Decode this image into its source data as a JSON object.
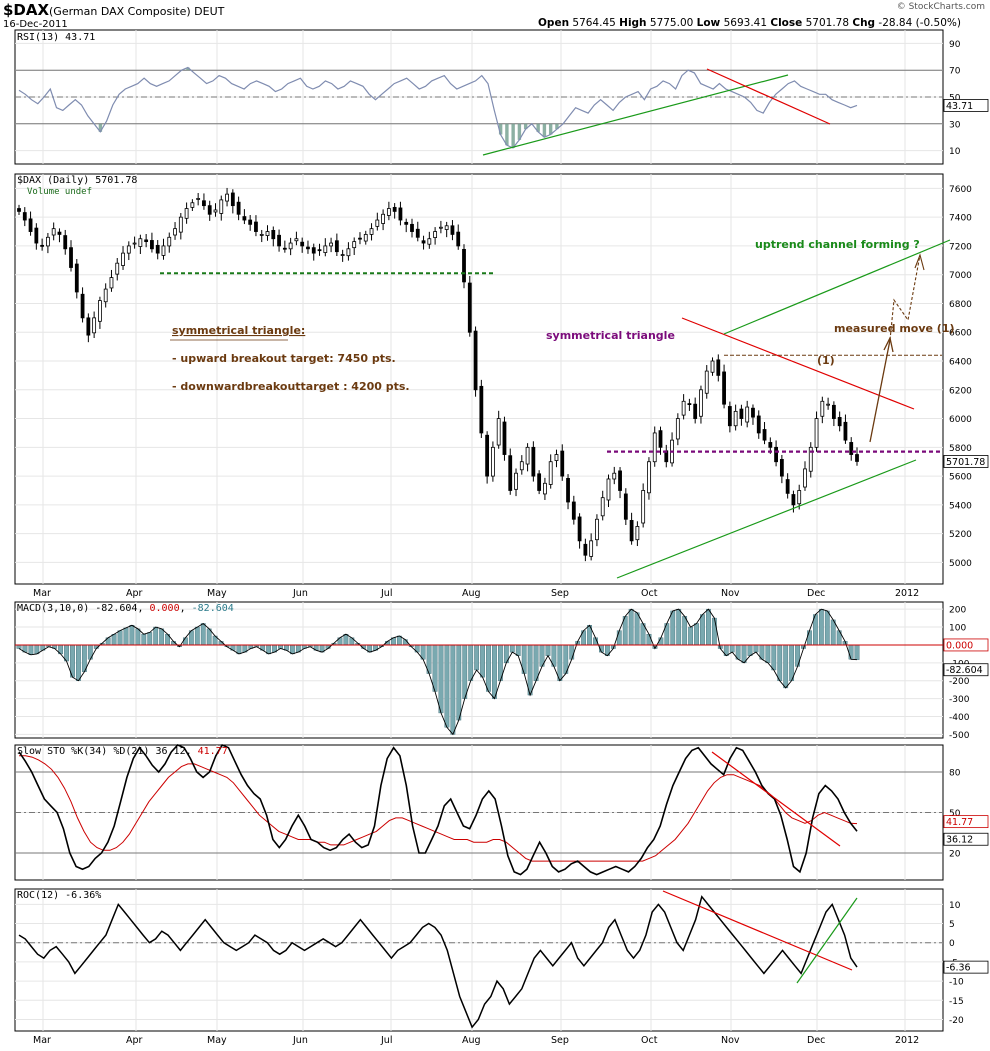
{
  "header": {
    "symbol": "$DAX",
    "name": "(German DAX Composite) DEUT",
    "date": "16-Dec-2011",
    "open_label": "Open",
    "open": "5764.45",
    "high_label": "High",
    "high": "5775.00",
    "low_label": "Low",
    "low": "5693.41",
    "close_label": "Close",
    "close": "5701.78",
    "chg_label": "Chg",
    "chg": "-28.84 (-0.50%)",
    "copyright": "© StockCharts.com"
  },
  "colors": {
    "price_border": "#000000",
    "rsi_line": "#7f8cb0",
    "rsi_fill": "#6f9c8c",
    "macd_hist": "#7aa9b0",
    "signal": "#cc0000",
    "trend_green": "#1a9a1a",
    "trend_red": "#e00000",
    "annotation_brown": "#6b3a10",
    "annotation_purple": "#7a0a7a",
    "dashed_green": "#1a7a1a"
  },
  "chart_data": [
    {
      "panel": "rsi",
      "type": "line",
      "label": "RSI(13) 43.71",
      "last_value": "43.71",
      "ylim": [
        0,
        100
      ],
      "y_ticks": [
        "90",
        "70",
        "50",
        "30",
        "10"
      ],
      "reference_lines": [
        70,
        50,
        30
      ],
      "values": [
        55,
        52,
        48,
        45,
        50,
        56,
        42,
        40,
        44,
        48,
        44,
        36,
        30,
        24,
        32,
        44,
        52,
        56,
        58,
        60,
        64,
        60,
        58,
        60,
        62,
        66,
        70,
        72,
        68,
        64,
        60,
        62,
        66,
        64,
        60,
        58,
        56,
        60,
        62,
        60,
        58,
        54,
        56,
        60,
        62,
        64,
        58,
        56,
        58,
        62,
        60,
        56,
        58,
        62,
        60,
        58,
        52,
        48,
        52,
        56,
        60,
        62,
        64,
        60,
        56,
        58,
        62,
        64,
        66,
        60,
        56,
        58,
        60,
        62,
        66,
        60,
        40,
        22,
        14,
        12,
        18,
        26,
        30,
        24,
        20,
        22,
        26,
        30,
        36,
        42,
        40,
        38,
        44,
        48,
        44,
        40,
        46,
        50,
        52,
        54,
        48,
        56,
        58,
        62,
        60,
        56,
        66,
        70,
        68,
        60,
        58,
        56,
        60,
        56,
        54,
        52,
        50,
        46,
        40,
        38,
        46,
        52,
        56,
        60,
        62,
        58,
        56,
        54,
        52,
        52,
        48,
        46,
        44,
        42,
        43.71
      ]
    },
    {
      "panel": "price",
      "type": "candlestick",
      "label": "$DAX (Daily) 5701.78",
      "sublabel": "Volume undef",
      "last_value": "5701.78",
      "ylim": [
        4850,
        7700
      ],
      "y_ticks": [
        "7600",
        "7400",
        "7200",
        "7000",
        "6800",
        "6600",
        "6400",
        "6200",
        "6000",
        "5800",
        "5600",
        "5400",
        "5200",
        "5000"
      ],
      "x_labels": [
        "Mar",
        "Apr",
        "May",
        "Jun",
        "Jul",
        "Aug",
        "Sep",
        "Oct",
        "Nov",
        "Dec",
        "2012"
      ],
      "closes": [
        7440,
        7380,
        7300,
        7220,
        7200,
        7260,
        7320,
        7280,
        7180,
        7050,
        6880,
        6700,
        6580,
        6700,
        6820,
        6900,
        6980,
        7080,
        7150,
        7200,
        7220,
        7250,
        7230,
        7180,
        7150,
        7200,
        7260,
        7320,
        7400,
        7460,
        7500,
        7530,
        7480,
        7420,
        7450,
        7520,
        7560,
        7480,
        7420,
        7380,
        7350,
        7300,
        7280,
        7300,
        7250,
        7200,
        7180,
        7220,
        7250,
        7200,
        7180,
        7150,
        7170,
        7200,
        7220,
        7160,
        7140,
        7180,
        7230,
        7250,
        7280,
        7320,
        7380,
        7420,
        7460,
        7440,
        7380,
        7350,
        7300,
        7260,
        7220,
        7250,
        7300,
        7330,
        7340,
        7280,
        7200,
        6950,
        6600,
        6200,
        5900,
        5600,
        5800,
        6000,
        5750,
        5500,
        5620,
        5700,
        5800,
        5600,
        5500,
        5550,
        5700,
        5750,
        5600,
        5420,
        5300,
        5150,
        5050,
        5150,
        5300,
        5450,
        5580,
        5620,
        5500,
        5300,
        5150,
        5250,
        5500,
        5700,
        5900,
        5800,
        5700,
        5850,
        6000,
        6120,
        6100,
        6000,
        6200,
        6330,
        6400,
        6300,
        6100,
        5950,
        6050,
        6000,
        6080,
        6010,
        5900,
        5850,
        5800,
        5700,
        5600,
        5480,
        5400,
        5500,
        5650,
        5800,
        6000,
        6120,
        6100,
        6000,
        5950,
        5850,
        5750,
        5701.78
      ],
      "annotations": [
        {
          "text": "symmetrical triangle:",
          "style": "underlined"
        },
        {
          "text": "- upward breakout target: 7450 pts."
        },
        {
          "text": "- downwardbreakouttarget : 4200 pts."
        },
        {
          "text": "symmetrical triangle"
        },
        {
          "text": "uptrend channel forming ?"
        },
        {
          "text": "measured move (1)"
        },
        {
          "text": "(1)"
        }
      ]
    },
    {
      "panel": "macd",
      "type": "bar",
      "label_prefix": "MACD(3,10,0)",
      "label_macd": "-82.604",
      "label_signal": "0.000",
      "label_hist": "-82.604",
      "last_signal": "0.000",
      "last_value": "-82.604",
      "ylim": [
        -520,
        240
      ],
      "y_ticks": [
        "200",
        "100",
        "-100",
        "-200",
        "-300",
        "-400",
        "-500"
      ],
      "values": [
        -20,
        -40,
        -55,
        -50,
        -30,
        -10,
        -20,
        -50,
        -90,
        -180,
        -200,
        -150,
        -80,
        -20,
        10,
        40,
        60,
        80,
        95,
        110,
        90,
        60,
        70,
        100,
        90,
        60,
        20,
        -10,
        40,
        80,
        100,
        120,
        90,
        50,
        20,
        -10,
        -30,
        -50,
        -40,
        -20,
        -10,
        -30,
        -50,
        -40,
        -20,
        -30,
        -50,
        -40,
        -20,
        -10,
        -30,
        -40,
        -20,
        10,
        40,
        60,
        40,
        10,
        -20,
        -40,
        -30,
        -10,
        20,
        40,
        50,
        30,
        -10,
        -40,
        -80,
        -160,
        -260,
        -380,
        -460,
        -500,
        -420,
        -300,
        -200,
        -140,
        -180,
        -260,
        -300,
        -200,
        -100,
        -40,
        -60,
        -160,
        -280,
        -200,
        -120,
        -60,
        -120,
        -200,
        -160,
        -80,
        20,
        80,
        110,
        40,
        -40,
        -60,
        -20,
        80,
        160,
        200,
        180,
        120,
        60,
        -20,
        40,
        120,
        190,
        200,
        160,
        100,
        120,
        170,
        200,
        150,
        -20,
        -60,
        -40,
        -80,
        -100,
        -60,
        -40,
        -80,
        -100,
        -140,
        -200,
        -240,
        -200,
        -120,
        -20,
        80,
        170,
        200,
        190,
        140,
        80,
        20,
        -80,
        -82.604
      ]
    },
    {
      "panel": "slow_sto",
      "type": "line",
      "label_prefix": "Slow STO %K(34) %D(21)",
      "label_k": "36.12",
      "label_d": "41.77",
      "last_k": "36.12",
      "last_d": "41.77",
      "ylim": [
        0,
        100
      ],
      "y_ticks": [
        "80",
        "50",
        "20"
      ],
      "reference_lines": [
        80,
        50,
        20
      ],
      "series": [
        {
          "name": "%K",
          "color": "#000000",
          "values": [
            95,
            88,
            80,
            70,
            60,
            55,
            50,
            38,
            20,
            10,
            8,
            10,
            16,
            20,
            28,
            40,
            58,
            76,
            90,
            98,
            92,
            85,
            80,
            86,
            95,
            100,
            98,
            90,
            80,
            76,
            80,
            92,
            100,
            98,
            88,
            78,
            70,
            64,
            60,
            48,
            30,
            24,
            30,
            40,
            48,
            40,
            30,
            28,
            24,
            22,
            24,
            30,
            34,
            28,
            24,
            26,
            40,
            70,
            90,
            98,
            92,
            70,
            40,
            20,
            20,
            30,
            40,
            55,
            60,
            50,
            40,
            38,
            48,
            60,
            66,
            60,
            40,
            18,
            6,
            4,
            8,
            18,
            28,
            20,
            10,
            6,
            8,
            12,
            14,
            10,
            6,
            4,
            6,
            8,
            10,
            8,
            6,
            10,
            16,
            24,
            30,
            40,
            56,
            70,
            80,
            90,
            96,
            98,
            92,
            86,
            82,
            78,
            90,
            98,
            96,
            88,
            80,
            70,
            64,
            60,
            48,
            30,
            10,
            6,
            20,
            46,
            64,
            70,
            66,
            60,
            50,
            42,
            36.12
          ]
        },
        {
          "name": "%D",
          "color": "#cc0000",
          "values": [
            92,
            92,
            91,
            89,
            86,
            82,
            76,
            68,
            58,
            46,
            36,
            28,
            24,
            22,
            22,
            24,
            28,
            34,
            42,
            50,
            58,
            64,
            70,
            76,
            80,
            84,
            86,
            86,
            84,
            82,
            80,
            78,
            76,
            72,
            66,
            60,
            54,
            48,
            44,
            40,
            36,
            34,
            32,
            30,
            30,
            30,
            28,
            28,
            26,
            26,
            26,
            28,
            30,
            32,
            34,
            36,
            40,
            44,
            46,
            46,
            44,
            42,
            40,
            38,
            36,
            34,
            32,
            30,
            30,
            30,
            28,
            28,
            28,
            30,
            30,
            28,
            24,
            20,
            16,
            14,
            14,
            14,
            14,
            14,
            14,
            14,
            14,
            14,
            14,
            14,
            14,
            14,
            14,
            14,
            14,
            14,
            14,
            16,
            18,
            22,
            26,
            30,
            36,
            42,
            50,
            58,
            66,
            72,
            76,
            78,
            78,
            76,
            74,
            72,
            70,
            66,
            62,
            56,
            50,
            46,
            44,
            42,
            44,
            48,
            50,
            48,
            46,
            44,
            42,
            41.77
          ]
        }
      ]
    },
    {
      "panel": "roc",
      "type": "line",
      "label": "ROC(12) -6.36%",
      "last_value": "-6.36",
      "ylim": [
        -23,
        14
      ],
      "y_ticks": [
        "10",
        "5",
        "0",
        "-5",
        "-10",
        "-15",
        "-20"
      ],
      "reference_lines": [
        0
      ],
      "values": [
        2,
        1,
        -1,
        -3,
        -4,
        -2,
        -1,
        -3,
        -5,
        -8,
        -6,
        -4,
        -2,
        0,
        2,
        6,
        10,
        8,
        6,
        4,
        2,
        0,
        1,
        3,
        2,
        0,
        -2,
        0,
        2,
        4,
        6,
        4,
        2,
        0,
        -1,
        -2,
        -1,
        0,
        2,
        1,
        0,
        -2,
        -3,
        -2,
        0,
        -1,
        -2,
        -1,
        0,
        1,
        0,
        -1,
        0,
        2,
        4,
        6,
        4,
        2,
        0,
        -2,
        -4,
        -2,
        -1,
        0,
        2,
        4,
        5,
        4,
        2,
        -2,
        -8,
        -14,
        -18,
        -22,
        -20,
        -16,
        -14,
        -10,
        -12,
        -16,
        -14,
        -12,
        -8,
        -4,
        -2,
        -4,
        -6,
        -4,
        -2,
        0,
        -4,
        -6,
        -4,
        -2,
        0,
        4,
        6,
        2,
        -2,
        -4,
        -2,
        2,
        8,
        10,
        8,
        4,
        0,
        -2,
        2,
        6,
        12,
        10,
        8,
        6,
        4,
        2,
        0,
        -2,
        -4,
        -6,
        -8,
        -6,
        -4,
        -2,
        -4,
        -6,
        -8,
        -4,
        0,
        4,
        8,
        10,
        6,
        2,
        -4,
        -6.36
      ],
      "x_labels": [
        "Mar",
        "Apr",
        "May",
        "Jun",
        "Jul",
        "Aug",
        "Sep",
        "Oct",
        "Nov",
        "Dec",
        "2012"
      ]
    }
  ]
}
